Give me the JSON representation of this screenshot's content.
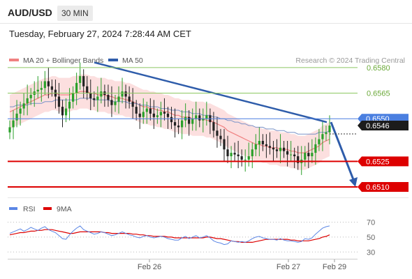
{
  "header": {
    "pair": "AUD/USD",
    "timeframe": "30 MIN"
  },
  "datetime": "Tuesday, February 27, 2024 7:28:44 AM CET",
  "legend": {
    "bollinger_label": "MA 20 + Bollinger Bands",
    "ma50_label": "MA 50",
    "credit": "Research © 2024 Trading Central"
  },
  "rsi_legend": {
    "rsi_label": "RSI",
    "ma_label": "9MA"
  },
  "colors": {
    "bollinger": "#f08080",
    "band_fill": "#fbd9d9",
    "ma50": "#2e5caa",
    "up": "#2aa02a",
    "down": "#222222",
    "support": "#dd0000",
    "resistance": "#8cc860",
    "pivot": "#4a7fe0",
    "rsi": "#5b86e5",
    "rsi_ma": "#dd0000"
  },
  "chart_data": [
    {
      "type": "line",
      "title": "AUD/USD 30 MIN",
      "ylim": [
        0.6501,
        0.6591
      ],
      "x_ticks": [
        "Feb 26",
        "Feb 27",
        "Feb 29"
      ],
      "last_price": "0.6546",
      "levels": [
        {
          "value": "0.6580",
          "kind": "resistance"
        },
        {
          "value": "0.6565",
          "kind": "resistance"
        },
        {
          "value": "0.6550",
          "kind": "pivot"
        },
        {
          "value": "0.6525",
          "kind": "support"
        },
        {
          "value": "0.6510",
          "kind": "support"
        }
      ],
      "close_series": [
        0.6545,
        0.6549,
        0.6553,
        0.6556,
        0.6559,
        0.6562,
        0.6564,
        0.6566,
        0.6567,
        0.6568,
        0.6572,
        0.6569,
        0.6567,
        0.6563,
        0.6557,
        0.6552,
        0.6556,
        0.656,
        0.6565,
        0.6571,
        0.6575,
        0.6569,
        0.6565,
        0.6562,
        0.6561,
        0.6563,
        0.6566,
        0.6564,
        0.6561,
        0.6558,
        0.656,
        0.6563,
        0.6566,
        0.6563,
        0.656,
        0.6557,
        0.6553,
        0.6551,
        0.6554,
        0.6556,
        0.6553,
        0.6551,
        0.6552,
        0.6554,
        0.6553,
        0.6551,
        0.6548,
        0.6546,
        0.6545,
        0.6549,
        0.6551,
        0.6547,
        0.655,
        0.6552,
        0.6549,
        0.655,
        0.6552,
        0.6548,
        0.6543,
        0.654,
        0.6538,
        0.6532,
        0.6528,
        0.653,
        0.6529,
        0.6528,
        0.6526,
        0.6526,
        0.6528,
        0.6532,
        0.6535,
        0.6537,
        0.6535,
        0.6534,
        0.6533,
        0.6532,
        0.6531,
        0.6533,
        0.6531,
        0.6529,
        0.6529,
        0.6528,
        0.6524,
        0.6526,
        0.653,
        0.6528,
        0.653,
        0.6535,
        0.6538,
        0.6541,
        0.6542,
        0.6546
      ],
      "ma20_series": [
        0.6554,
        0.6555,
        0.6556,
        0.6557,
        0.6558,
        0.6559,
        0.656,
        0.6561,
        0.6562,
        0.6563,
        0.6564,
        0.6564,
        0.6565,
        0.6565,
        0.6564,
        0.6564,
        0.6564,
        0.6564,
        0.6565,
        0.6565,
        0.6566,
        0.6566,
        0.6566,
        0.6565,
        0.6565,
        0.6564,
        0.6564,
        0.6564,
        0.6563,
        0.6563,
        0.6562,
        0.6562,
        0.6562,
        0.6561,
        0.6561,
        0.656,
        0.6559,
        0.6558,
        0.6557,
        0.6557,
        0.6556,
        0.6556,
        0.6555,
        0.6555,
        0.6554,
        0.6554,
        0.6553,
        0.6552,
        0.6552,
        0.6551,
        0.6551,
        0.6551,
        0.655,
        0.655,
        0.655,
        0.655,
        0.6549,
        0.6549,
        0.6548,
        0.6547,
        0.6546,
        0.6545,
        0.6543,
        0.6542,
        0.6541,
        0.654,
        0.6539,
        0.6538,
        0.6537,
        0.6536,
        0.6535,
        0.6535,
        0.6534,
        0.6534,
        0.6533,
        0.6533,
        0.6533,
        0.6532,
        0.6532,
        0.6532,
        0.6531,
        0.6531,
        0.653,
        0.653,
        0.653,
        0.6531,
        0.6532,
        0.6533,
        0.6534,
        0.6536,
        0.6537,
        0.6538
      ],
      "ma50_series": [
        0.6557,
        0.6557,
        0.6558,
        0.6558,
        0.6558,
        0.6558,
        0.6559,
        0.6559,
        0.6559,
        0.6559,
        0.656,
        0.656,
        0.656,
        0.6561,
        0.6561,
        0.6561,
        0.6561,
        0.6561,
        0.6561,
        0.6561,
        0.6562,
        0.6562,
        0.6562,
        0.6562,
        0.6561,
        0.6561,
        0.6561,
        0.6561,
        0.6561,
        0.656,
        0.656,
        0.656,
        0.656,
        0.656,
        0.6559,
        0.6559,
        0.6559,
        0.6558,
        0.6558,
        0.6558,
        0.6557,
        0.6557,
        0.6557,
        0.6556,
        0.6556,
        0.6556,
        0.6555,
        0.6555,
        0.6555,
        0.6554,
        0.6554,
        0.6554,
        0.6553,
        0.6553,
        0.6553,
        0.6552,
        0.6552,
        0.6552,
        0.6551,
        0.6551,
        0.655,
        0.655,
        0.6549,
        0.6549,
        0.6548,
        0.6548,
        0.6547,
        0.6547,
        0.6546,
        0.6546,
        0.6545,
        0.6545,
        0.6545,
        0.6544,
        0.6544,
        0.6544,
        0.6543,
        0.6543,
        0.6543,
        0.6542,
        0.6542,
        0.6542,
        0.6541,
        0.6541,
        0.6541,
        0.6541,
        0.6541,
        0.6541,
        0.6542,
        0.6542,
        0.6542,
        0.6543
      ],
      "trendline": [
        0.6583,
        0.6548
      ],
      "projection": [
        0.6548,
        0.651
      ]
    },
    {
      "type": "line",
      "title": "RSI",
      "ylim": [
        20,
        78
      ],
      "y_ticks": [
        "70",
        "50",
        "30"
      ],
      "rsi_series": [
        55,
        57,
        59,
        61,
        58,
        60,
        63,
        61,
        59,
        62,
        64,
        60,
        58,
        56,
        52,
        48,
        47,
        53,
        58,
        62,
        65,
        60,
        58,
        56,
        54,
        55,
        57,
        56,
        54,
        52,
        53,
        55,
        57,
        55,
        53,
        52,
        50,
        49,
        51,
        52,
        50,
        49,
        50,
        51,
        50,
        48,
        47,
        46,
        46,
        49,
        51,
        48,
        50,
        52,
        49,
        50,
        52,
        49,
        45,
        43,
        42,
        40,
        41,
        45,
        44,
        43,
        44,
        43,
        45,
        48,
        50,
        51,
        49,
        48,
        47,
        47,
        46,
        48,
        46,
        45,
        45,
        44,
        43,
        44,
        48,
        47,
        49,
        54,
        58,
        62,
        64,
        65
      ],
      "ma9_series": [
        53,
        54,
        55,
        56,
        56,
        57,
        58,
        58,
        59,
        59,
        60,
        60,
        60,
        59,
        58,
        57,
        56,
        55,
        55,
        56,
        57,
        57,
        57,
        57,
        57,
        57,
        57,
        56,
        56,
        55,
        55,
        55,
        55,
        55,
        55,
        54,
        54,
        53,
        53,
        52,
        52,
        51,
        51,
        51,
        51,
        50,
        50,
        49,
        49,
        49,
        49,
        49,
        49,
        49,
        49,
        49,
        50,
        50,
        49,
        48,
        48,
        47,
        46,
        45,
        44,
        44,
        43,
        43,
        43,
        43,
        44,
        45,
        46,
        47,
        47,
        47,
        47,
        47,
        47,
        47,
        46,
        46,
        45,
        45,
        45,
        45,
        46,
        47,
        48,
        50,
        51,
        53
      ]
    }
  ]
}
